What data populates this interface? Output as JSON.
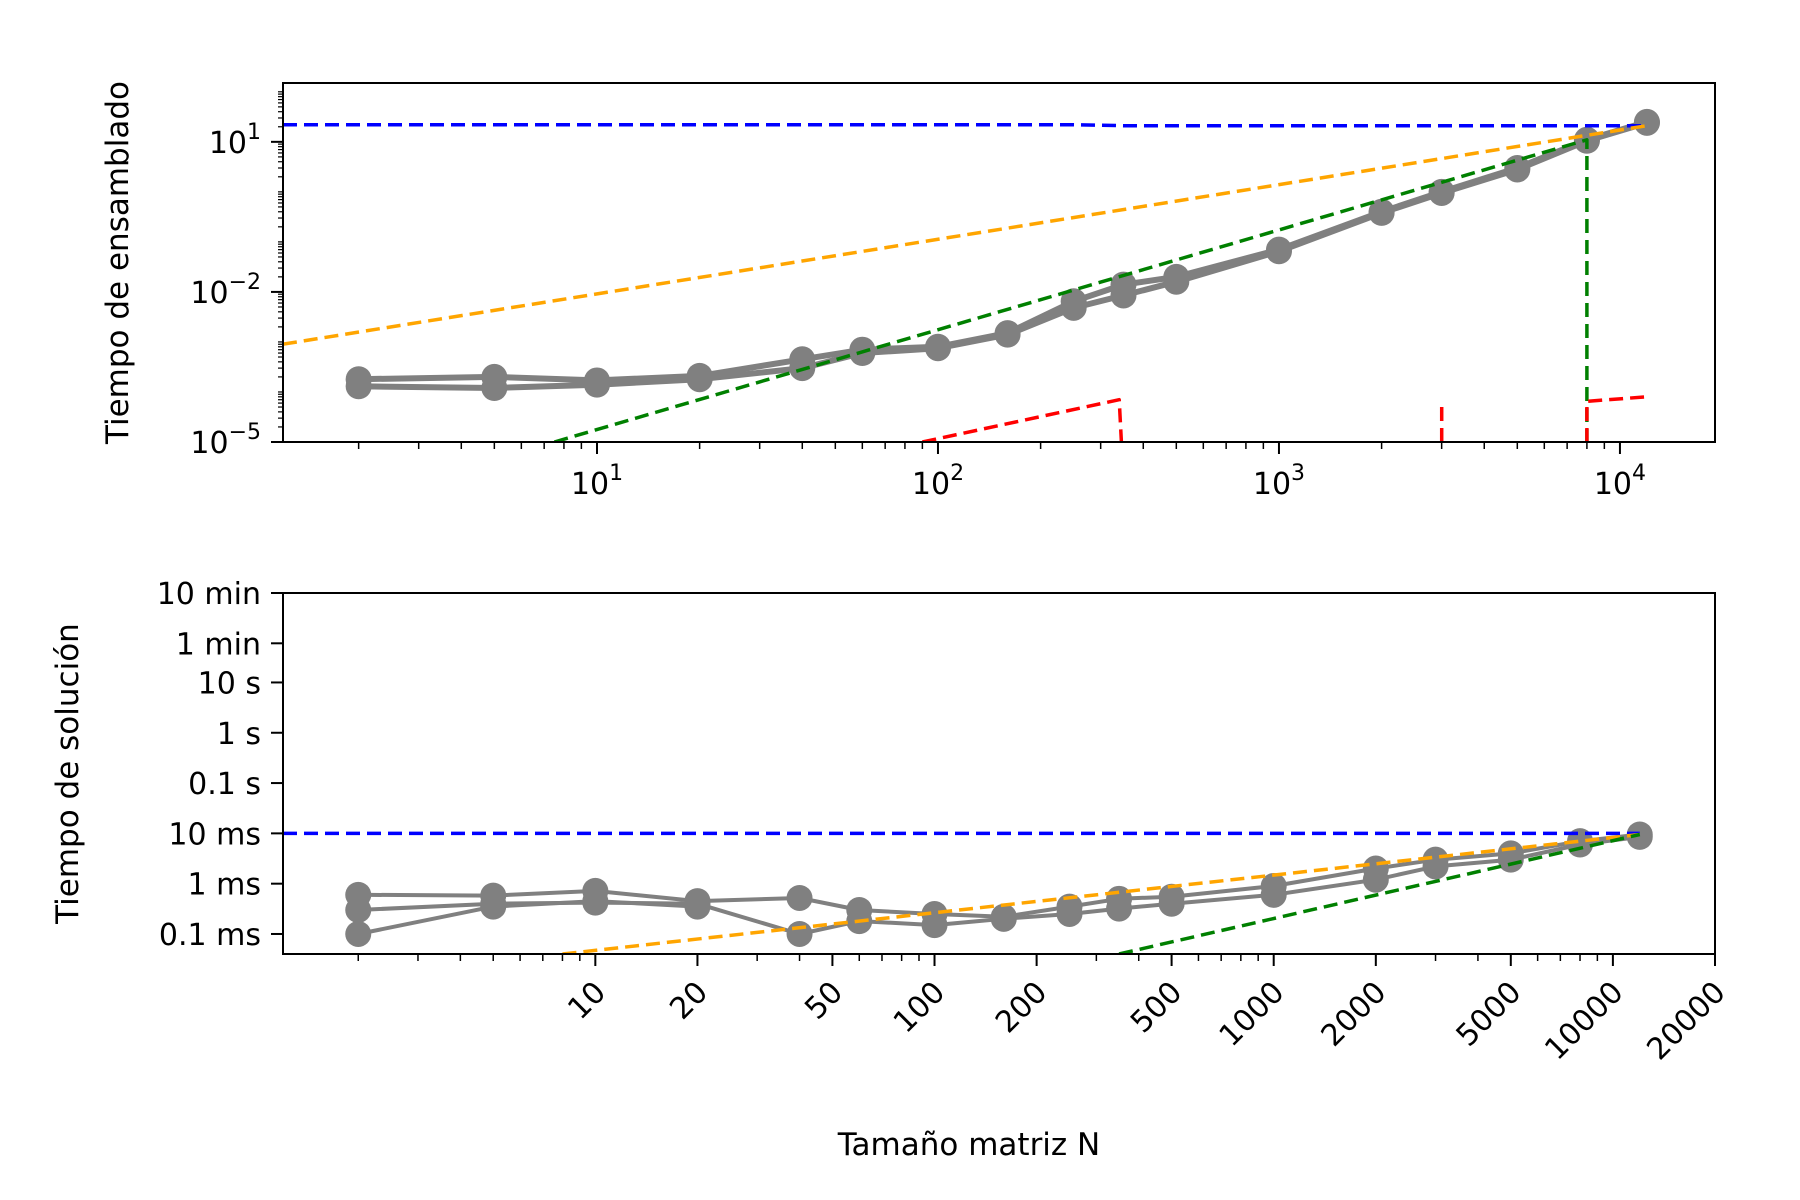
{
  "chart_data": [
    {
      "type": "line",
      "ylabel": "Tiempo de ensamblado",
      "xscale": "log",
      "yscale": "log",
      "xlim": [
        1.2,
        19000
      ],
      "ylim": [
        1e-05,
        150
      ],
      "xticks": [
        {
          "value": 10,
          "base": "10",
          "exp": "1"
        },
        {
          "value": 100,
          "base": "10",
          "exp": "2"
        },
        {
          "value": 1000,
          "base": "10",
          "exp": "3"
        },
        {
          "value": 10000,
          "base": "10",
          "exp": "4"
        }
      ],
      "yticks": [
        {
          "value": 1e-05,
          "base": "10",
          "exp": "−5"
        },
        {
          "value": 0.01,
          "base": "10",
          "exp": "−2"
        },
        {
          "value": 10,
          "base": "10",
          "exp": "1"
        }
      ],
      "series": [
        {
          "color": "#808080",
          "style": "solid-markers",
          "points": [
            [
              2,
              0.00018
            ],
            [
              5,
              0.0002
            ],
            [
              10,
              0.00017
            ],
            [
              20,
              0.00021
            ],
            [
              40,
              0.00045
            ],
            [
              60,
              0.0007
            ],
            [
              100,
              0.0008
            ],
            [
              160,
              0.0015
            ],
            [
              250,
              0.0065
            ],
            [
              350,
              0.014
            ],
            [
              500,
              0.02
            ],
            [
              1000,
              0.07
            ],
            [
              2000,
              0.4
            ],
            [
              3000,
              1.0
            ],
            [
              5000,
              3.0
            ],
            [
              8000,
              11.0
            ],
            [
              12000,
              25.0
            ]
          ]
        },
        {
          "color": "#808080",
          "style": "solid-markers",
          "points": [
            [
              2,
              0.00013
            ],
            [
              5,
              0.00012
            ],
            [
              10,
              0.00014
            ],
            [
              20,
              0.00018
            ],
            [
              40,
              0.0003
            ],
            [
              60,
              0.0006
            ],
            [
              100,
              0.00075
            ],
            [
              160,
              0.0014
            ],
            [
              250,
              0.0048
            ],
            [
              350,
              0.0085
            ],
            [
              500,
              0.016
            ],
            [
              1000,
              0.065
            ],
            [
              2000,
              0.38
            ],
            [
              3000,
              0.95
            ],
            [
              5000,
              2.8
            ],
            [
              8000,
              10.5
            ],
            [
              12000,
              24.0
            ]
          ]
        },
        {
          "color": "#0000ff",
          "style": "dashed",
          "points": [
            [
              1.2,
              22
            ],
            [
              250,
              22
            ],
            [
              350,
              21
            ],
            [
              12000,
              21
            ]
          ]
        },
        {
          "color": "#ffa500",
          "style": "dashed",
          "points": [
            [
              1.2,
              0.0009
            ],
            [
              12000,
              21
            ]
          ]
        },
        {
          "color": "#008000",
          "style": "dashed",
          "points": [
            [
              7.5,
              1e-05
            ],
            [
              8000,
              11
            ],
            [
              8000,
              1e-05
            ]
          ]
        },
        {
          "color": "#ff0000",
          "style": "dashed",
          "points": [
            [
              90,
              1e-05
            ],
            [
              340,
              7e-05
            ],
            [
              345,
              1e-05
            ]
          ]
        },
        {
          "color": "#ff0000",
          "style": "dashed",
          "points": [
            [
              3000,
              1e-05
            ],
            [
              3000,
              5e-05
            ]
          ]
        },
        {
          "color": "#ff0000",
          "style": "dashed",
          "points": [
            [
              8000,
              1e-05
            ],
            [
              8000,
              6.5e-05
            ],
            [
              12000,
              8e-05
            ]
          ]
        }
      ]
    },
    {
      "type": "line",
      "xlabel": "Tamaño matriz N",
      "ylabel": "Tiempo de solución",
      "xscale": "log",
      "yscale": "log",
      "xlim": [
        1.2,
        20000
      ],
      "ylim": [
        4e-05,
        600
      ],
      "xticks": [
        {
          "value": 10,
          "label": "10"
        },
        {
          "value": 20,
          "label": "20"
        },
        {
          "value": 50,
          "label": "50"
        },
        {
          "value": 100,
          "label": "100"
        },
        {
          "value": 200,
          "label": "200"
        },
        {
          "value": 500,
          "label": "500"
        },
        {
          "value": 1000,
          "label": "1000"
        },
        {
          "value": 2000,
          "label": "2000"
        },
        {
          "value": 5000,
          "label": "5000"
        },
        {
          "value": 10000,
          "label": "10000"
        },
        {
          "value": 20000,
          "label": "20000"
        }
      ],
      "yticks": [
        {
          "value": 0.0001,
          "label": "0.1 ms"
        },
        {
          "value": 0.001,
          "label": "1 ms"
        },
        {
          "value": 0.01,
          "label": "10 ms"
        },
        {
          "value": 0.1,
          "label": "0.1 s"
        },
        {
          "value": 1,
          "label": "1 s"
        },
        {
          "value": 10,
          "label": "10 s"
        },
        {
          "value": 60,
          "label": "1 min"
        },
        {
          "value": 600,
          "label": "10 min"
        }
      ],
      "series": [
        {
          "color": "#808080",
          "style": "solid-markers",
          "points": [
            [
              2,
              0.0006
            ],
            [
              5,
              0.00058
            ],
            [
              10,
              0.00072
            ],
            [
              20,
              0.00045
            ],
            [
              40,
              0.00052
            ],
            [
              60,
              0.0003
            ],
            [
              100,
              0.00025
            ],
            [
              160,
              0.00022
            ],
            [
              250,
              0.00035
            ],
            [
              350,
              0.0005
            ],
            [
              500,
              0.00055
            ],
            [
              1000,
              0.0009
            ],
            [
              2000,
              0.002
            ],
            [
              3000,
              0.003
            ],
            [
              5000,
              0.004
            ],
            [
              8000,
              0.007
            ],
            [
              12000,
              0.0095
            ]
          ]
        },
        {
          "color": "#808080",
          "style": "solid-markers",
          "points": [
            [
              2,
              0.0003
            ],
            [
              5,
              0.0004
            ],
            [
              10,
              0.00042
            ],
            [
              20,
              0.0004
            ],
            [
              40,
              0.0001
            ],
            [
              60,
              0.00018
            ],
            [
              100,
              0.00015
            ],
            [
              160,
              0.0002
            ],
            [
              250,
              0.00025
            ],
            [
              350,
              0.00032
            ],
            [
              500,
              0.0004
            ],
            [
              1000,
              0.0006
            ],
            [
              2000,
              0.0012
            ],
            [
              3000,
              0.0022
            ],
            [
              5000,
              0.003
            ],
            [
              8000,
              0.006
            ],
            [
              12000,
              0.0085
            ]
          ]
        },
        {
          "color": "#808080",
          "style": "solid-markers",
          "points": [
            [
              2,
              0.0001
            ],
            [
              5,
              0.00035
            ],
            [
              10,
              0.00045
            ],
            [
              20,
              0.00035
            ]
          ]
        },
        {
          "color": "#0000ff",
          "style": "dashed",
          "points": [
            [
              1.2,
              0.01
            ],
            [
              12000,
              0.01
            ]
          ]
        },
        {
          "color": "#ffa500",
          "style": "dashed",
          "points": [
            [
              8,
              4e-05
            ],
            [
              12000,
              0.0095
            ]
          ]
        },
        {
          "color": "#008000",
          "style": "dashed",
          "points": [
            [
              350,
              4e-05
            ],
            [
              12000,
              0.0095
            ]
          ]
        }
      ]
    }
  ]
}
